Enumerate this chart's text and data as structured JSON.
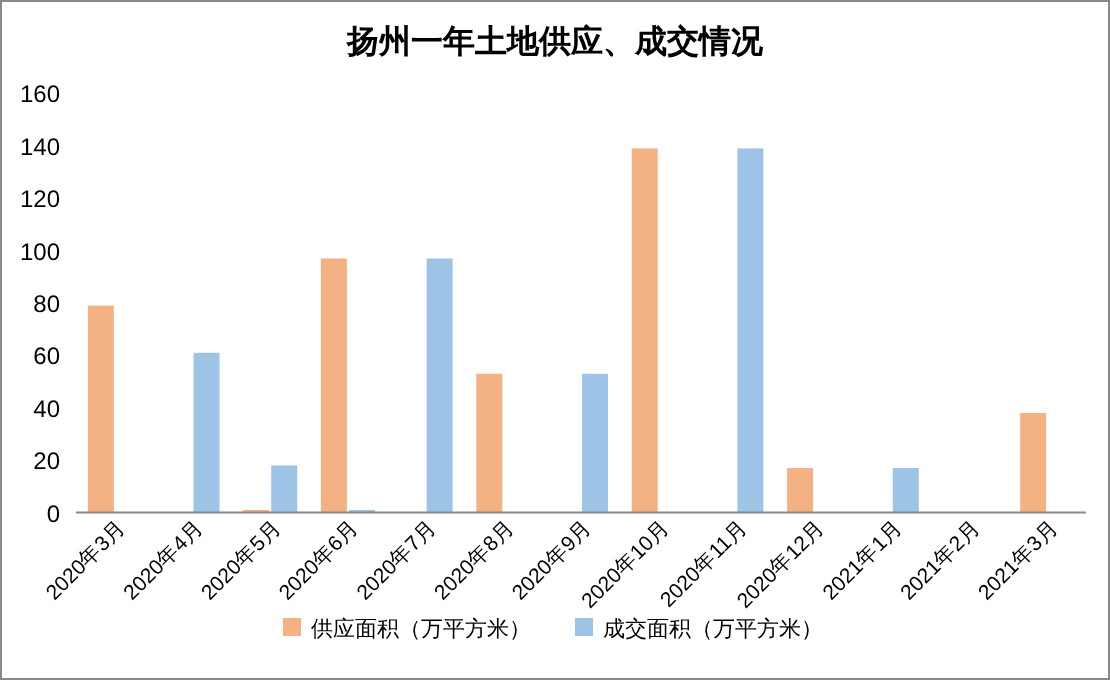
{
  "chart_data": {
    "type": "bar",
    "title": "扬州一年土地供应、成交情况",
    "categories": [
      "2020年3月",
      "2020年4月",
      "2020年5月",
      "2020年6月",
      "2020年7月",
      "2020年8月",
      "2020年9月",
      "2020年10月",
      "2020年11月",
      "2020年12月",
      "2021年1月",
      "2021年2月",
      "2021年3月"
    ],
    "series": [
      {
        "name": "供应面积（万平方米）",
        "color": "#f4b183",
        "values": [
          79,
          0,
          1,
          97,
          0,
          53,
          0,
          139,
          0,
          17,
          0,
          0,
          38
        ]
      },
      {
        "name": "成交面积（万平方米）",
        "color": "#9dc3e6",
        "values": [
          0,
          61,
          18,
          1,
          97,
          0,
          53,
          0,
          139,
          0,
          17,
          0,
          0
        ]
      }
    ],
    "ylim": [
      0,
      160
    ],
    "yticks": [
      0,
      20,
      40,
      60,
      80,
      100,
      120,
      140,
      160
    ],
    "grid": false,
    "legend": "bottom"
  }
}
